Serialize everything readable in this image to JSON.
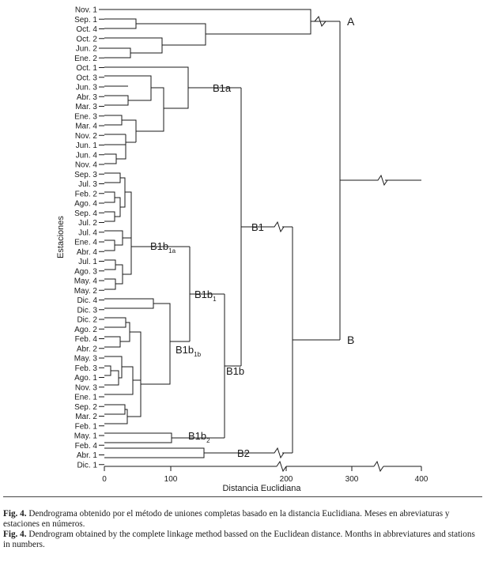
{
  "axis": {
    "ylabel": "Estaciones",
    "xlabel": "Distancia Euclidiana",
    "ticks": [
      "0",
      "100",
      "200",
      "300",
      "400"
    ],
    "break_marks": "zigzag"
  },
  "leaves": [
    "Nov. 1",
    "Sep. 1",
    "Oct. 4",
    "Oct. 2",
    "Jun. 2",
    "Ene. 2",
    "Oct. 1",
    "Oct. 3",
    "Jun. 3",
    "Abr. 3",
    "Mar. 3",
    "Ene. 3",
    "Mar. 4",
    "Nov. 2",
    "Jun. 1",
    "Jun. 4",
    "Nov. 4",
    "Sep. 3",
    "Jul. 3",
    "Feb. 2",
    "Ago. 4",
    "Sep. 4",
    "Jul. 2",
    "Jul. 4",
    "Ene. 4",
    "Abr. 4",
    "Jul. 1",
    "Ago. 3",
    "May. 4",
    "May. 2",
    "Dic. 4",
    "Dic. 3",
    "Dic. 2",
    "Ago. 2",
    "Feb. 4",
    "Abr. 2",
    "May. 3",
    "Feb. 3",
    "Ago. 1",
    "Nov. 3",
    "Ene. 1",
    "Sep. 2",
    "Mar. 2",
    "Feb. 1",
    "May. 1",
    "Feb. 4",
    "Abr. 1",
    "Dic. 1"
  ],
  "clusters": {
    "A": "A",
    "B": "B",
    "B1": "B1",
    "B1a": "B1a",
    "B1b": "B1b",
    "B1b1_main": "B1b",
    "B1b1_sub": "1",
    "B1b1a_main": "B1b",
    "B1b1a_sub": "1a",
    "B1b1b_main": "B1b",
    "B1b1b_sub": "1b",
    "B1b2_main": "B1b",
    "B1b2_sub": "2",
    "B2": "B2"
  },
  "caption": {
    "es_figno": "Fig. 4.",
    "es_text": " Dendrograma obtenido por el método de uniones completas basado en la distancia Euclidiana. Meses en abreviaturas y estaciones en números.",
    "en_figno": "Fig. 4.",
    "en_text": " Dendrogram obtained by the complete linkage method bassed on the Euclidean distance. Months in abbreviatures and stations in numbers."
  },
  "colors": {
    "ink": "#1a1a1a",
    "background": "#ffffff"
  }
}
